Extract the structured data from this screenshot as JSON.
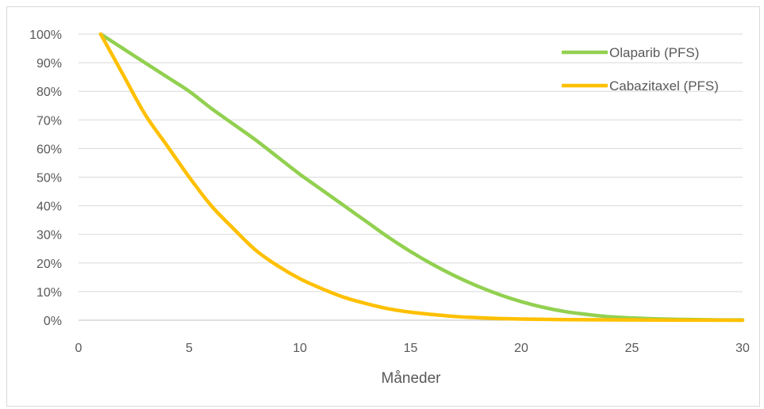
{
  "chart_data": {
    "type": "line",
    "title": "",
    "xlabel": "Måneder",
    "ylabel": "",
    "xlim": [
      0,
      30
    ],
    "ylim": [
      0,
      100
    ],
    "x_ticks": [
      "0",
      "5",
      "10",
      "15",
      "20",
      "25",
      "30"
    ],
    "y_ticks": [
      "0%",
      "10%",
      "20%",
      "30%",
      "40%",
      "50%",
      "60%",
      "70%",
      "80%",
      "90%",
      "100%"
    ],
    "grid": "horizontal",
    "legend_position": "top-right",
    "series": [
      {
        "name": "Olaparib (PFS)",
        "color": "#92d050",
        "x": [
          1,
          2,
          3,
          4,
          5,
          6,
          7,
          8,
          9,
          10,
          11,
          12,
          13,
          14,
          15,
          16,
          17,
          18,
          19,
          20,
          21,
          22,
          23,
          24,
          25,
          26,
          27,
          28,
          29,
          30
        ],
        "y": [
          100,
          95,
          90,
          85,
          80,
          74,
          68.5,
          63,
          57,
          51,
          45.5,
          40,
          34.5,
          29,
          24,
          19.5,
          15.5,
          12,
          9,
          6.5,
          4.5,
          3,
          2,
          1.2,
          0.8,
          0.5,
          0.3,
          0.2,
          0.1,
          0.1
        ]
      },
      {
        "name": "Cabazitaxel (PFS)",
        "color": "#ffc000",
        "x": [
          1,
          2,
          3,
          4,
          5,
          6,
          7,
          8,
          9,
          10,
          11,
          12,
          13,
          14,
          15,
          16,
          17,
          18,
          19,
          20,
          22,
          25,
          30
        ],
        "y": [
          100,
          86,
          72,
          61,
          50,
          40,
          32,
          24.5,
          19,
          14.5,
          11,
          8,
          5.8,
          4,
          2.8,
          2,
          1.3,
          0.9,
          0.6,
          0.4,
          0.2,
          0.1,
          0
        ]
      }
    ]
  }
}
